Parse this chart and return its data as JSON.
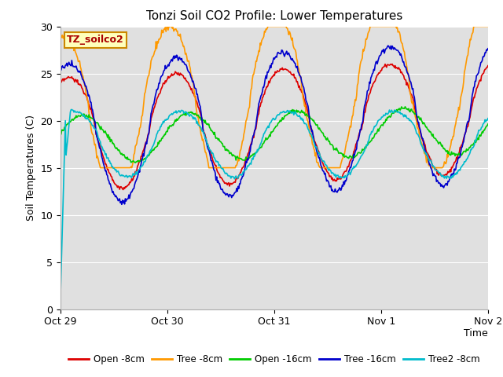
{
  "title": "Tonzi Soil CO2 Profile: Lower Temperatures",
  "xlabel": "Time",
  "ylabel": "Soil Temperatures (C)",
  "watermark": "TZ_soilco2",
  "ylim": [
    0,
    30
  ],
  "yticks": [
    0,
    5,
    10,
    15,
    20,
    25,
    30
  ],
  "plot_bg_color": "#e0e0e0",
  "fig_bg_color": "#ffffff",
  "series": [
    {
      "label": "Open -8cm",
      "color": "#dd0000"
    },
    {
      "label": "Tree -8cm",
      "color": "#ff9900"
    },
    {
      "label": "Open -16cm",
      "color": "#00cc00"
    },
    {
      "label": "Tree -16cm",
      "color": "#0000cc"
    },
    {
      "label": "Tree2 -8cm",
      "color": "#00bbcc"
    }
  ],
  "x_tick_labels": [
    "Oct 29",
    "Oct 30",
    "Oct 31",
    "Nov 1",
    "Nov 2"
  ],
  "x_tick_positions": [
    0,
    24,
    48,
    72,
    96
  ]
}
